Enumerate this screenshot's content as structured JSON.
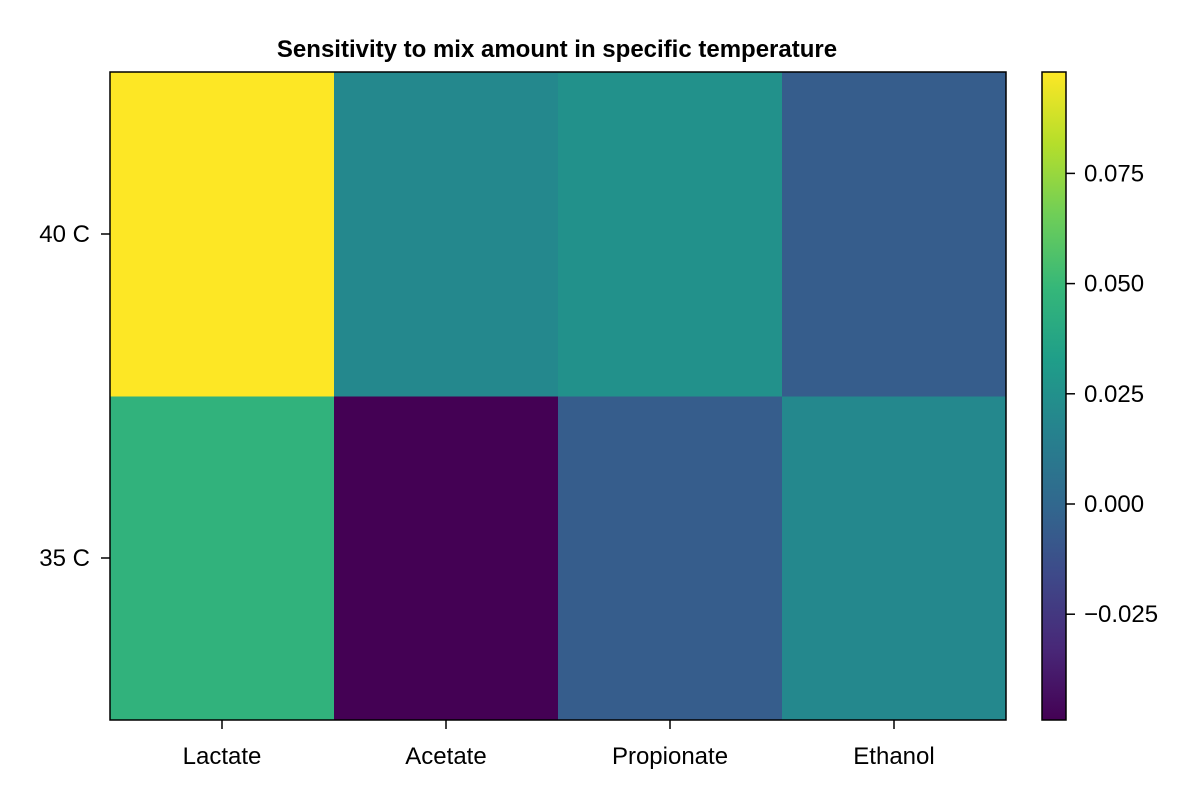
{
  "chart_data": {
    "type": "heatmap",
    "title": "Sensitivity to mix amount in specific temperature",
    "xlabel": "",
    "ylabel": "",
    "x_categories": [
      "Lactate",
      "Acetate",
      "Propionate",
      "Ethanol"
    ],
    "y_categories": [
      "35 C",
      "40 C"
    ],
    "values": [
      [
        0.046,
        -0.049,
        -0.006,
        0.02
      ],
      [
        0.098,
        0.02,
        0.025,
        -0.006
      ]
    ],
    "colormap": "viridis",
    "colorbar": {
      "range": [
        -0.049,
        0.098
      ],
      "ticks": [
        -0.025,
        0.0,
        0.025,
        0.05,
        0.075
      ],
      "tick_labels": [
        "−0.025",
        "0.000",
        "0.025",
        "0.050",
        "0.075"
      ]
    },
    "grid": false
  }
}
